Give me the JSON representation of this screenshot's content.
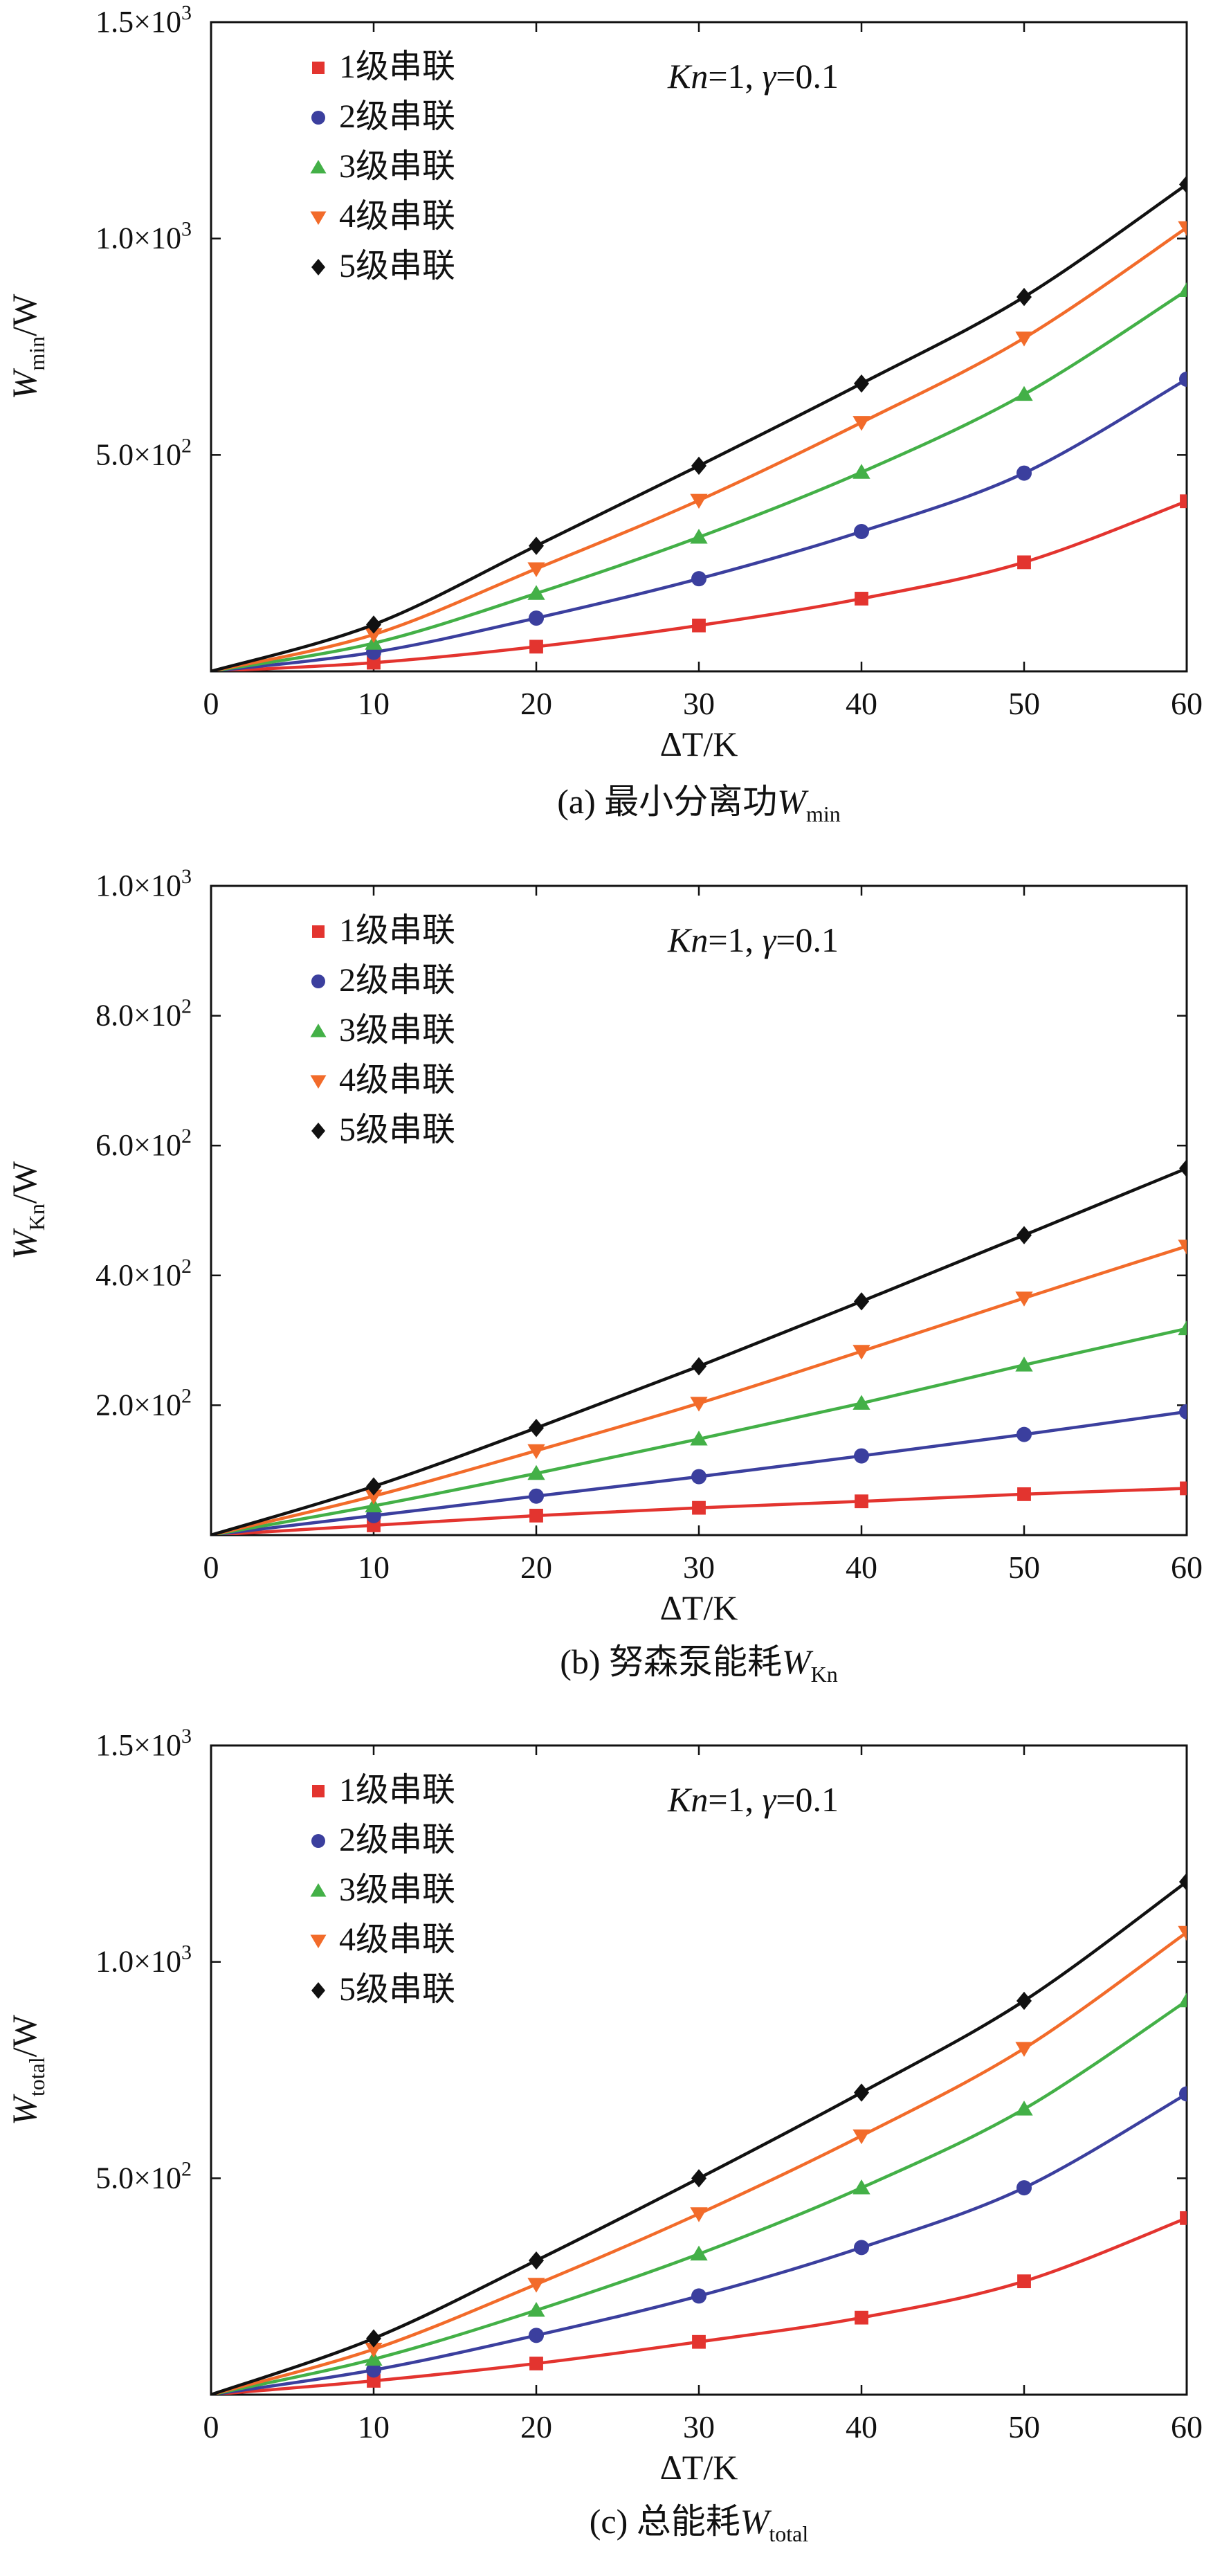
{
  "chart_data": [
    {
      "type": "line",
      "panel_caption": {
        "label": "(a) 最小分离功",
        "symbol": "W",
        "subscript": "min"
      },
      "ylabel": {
        "symbol": "W",
        "subscript": "min",
        "unit": "/W"
      },
      "xlabel": {
        "symbol": "ΔT",
        "unit": "/K"
      },
      "annotation": {
        "Kn": "Kn",
        "Kn_val": "=1, ",
        "gamma": "γ",
        "gamma_val": "=0.1"
      },
      "xlim": [
        0,
        60
      ],
      "ylim": [
        0,
        1500
      ],
      "xticks": [
        0,
        10,
        20,
        30,
        40,
        50,
        60
      ],
      "yticks": [
        {
          "value": 500,
          "mant": "5.0×10",
          "exp": "2"
        },
        {
          "value": 1000,
          "mant": "1.0×10",
          "exp": "3"
        },
        {
          "value": 1500,
          "mant": "1.5×10",
          "exp": "3"
        }
      ],
      "legend_position": "top-left",
      "x": [
        0,
        10,
        20,
        30,
        40,
        50,
        60
      ],
      "series": [
        {
          "name": "1级串联",
          "color": "#e3342f",
          "marker": "square",
          "values": [
            0,
            20,
            57,
            106,
            168,
            252,
            393
          ]
        },
        {
          "name": "2级串联",
          "color": "#3b3f9e",
          "marker": "circle",
          "values": [
            0,
            44,
            123,
            214,
            323,
            458,
            675
          ]
        },
        {
          "name": "3级串联",
          "color": "#43b047",
          "marker": "triangle-up",
          "values": [
            0,
            65,
            180,
            310,
            460,
            640,
            880
          ]
        },
        {
          "name": "4级串联",
          "color": "#f26b2a",
          "marker": "triangle-down",
          "values": [
            0,
            85,
            237,
            395,
            575,
            770,
            1025
          ]
        },
        {
          "name": "5级串联",
          "color": "#111111",
          "marker": "diamond",
          "values": [
            0,
            108,
            290,
            475,
            665,
            865,
            1125
          ]
        }
      ]
    },
    {
      "type": "line",
      "panel_caption": {
        "label": "(b) 努森泵能耗",
        "symbol": "W",
        "subscript": "Kn"
      },
      "ylabel": {
        "symbol": "W",
        "subscript": "Kn",
        "unit": "/W"
      },
      "xlabel": {
        "symbol": "ΔT",
        "unit": "/K"
      },
      "annotation": {
        "Kn": "Kn",
        "Kn_val": "=1, ",
        "gamma": "γ",
        "gamma_val": "=0.1"
      },
      "xlim": [
        0,
        60
      ],
      "ylim": [
        0,
        1000
      ],
      "xticks": [
        0,
        10,
        20,
        30,
        40,
        50,
        60
      ],
      "yticks": [
        {
          "value": 200,
          "mant": "2.0×10",
          "exp": "2"
        },
        {
          "value": 400,
          "mant": "4.0×10",
          "exp": "2"
        },
        {
          "value": 600,
          "mant": "6.0×10",
          "exp": "2"
        },
        {
          "value": 800,
          "mant": "8.0×10",
          "exp": "2"
        },
        {
          "value": 1000,
          "mant": "1.0×10",
          "exp": "3"
        }
      ],
      "legend_position": "top-left",
      "x": [
        0,
        10,
        20,
        30,
        40,
        50,
        60
      ],
      "series": [
        {
          "name": "1级串联",
          "color": "#e3342f",
          "marker": "square",
          "values": [
            0,
            15,
            30,
            42,
            52,
            63,
            72
          ]
        },
        {
          "name": "2级串联",
          "color": "#3b3f9e",
          "marker": "circle",
          "values": [
            0,
            30,
            60,
            90,
            122,
            155,
            190
          ]
        },
        {
          "name": "3级串联",
          "color": "#43b047",
          "marker": "triangle-up",
          "values": [
            0,
            45,
            95,
            148,
            203,
            262,
            318
          ]
        },
        {
          "name": "4级串联",
          "color": "#f26b2a",
          "marker": "triangle-down",
          "values": [
            0,
            60,
            130,
            203,
            283,
            365,
            445
          ]
        },
        {
          "name": "5级串联",
          "color": "#111111",
          "marker": "diamond",
          "values": [
            0,
            75,
            165,
            260,
            360,
            462,
            565
          ]
        }
      ]
    },
    {
      "type": "line",
      "panel_caption": {
        "label": "(c) 总能耗",
        "symbol": "W",
        "subscript": "total"
      },
      "ylabel": {
        "symbol": "W",
        "subscript": "total",
        "unit": "/W"
      },
      "xlabel": {
        "symbol": "ΔT",
        "unit": "/K"
      },
      "annotation": {
        "Kn": "Kn",
        "Kn_val": "=1, ",
        "gamma": "γ",
        "gamma_val": "=0.1"
      },
      "xlim": [
        0,
        60
      ],
      "ylim": [
        0,
        1500
      ],
      "xticks": [
        0,
        10,
        20,
        30,
        40,
        50,
        60
      ],
      "yticks": [
        {
          "value": 500,
          "mant": "5.0×10",
          "exp": "2"
        },
        {
          "value": 1000,
          "mant": "1.0×10",
          "exp": "3"
        },
        {
          "value": 1500,
          "mant": "1.5×10",
          "exp": "3"
        }
      ],
      "legend_position": "top-left",
      "x": [
        0,
        10,
        20,
        30,
        40,
        50,
        60
      ],
      "series": [
        {
          "name": "1级串联",
          "color": "#e3342f",
          "marker": "square",
          "values": [
            0,
            32,
            72,
            122,
            178,
            262,
            408
          ]
        },
        {
          "name": "2级串联",
          "color": "#3b3f9e",
          "marker": "circle",
          "values": [
            0,
            57,
            137,
            228,
            340,
            478,
            695
          ]
        },
        {
          "name": "3级串联",
          "color": "#43b047",
          "marker": "triangle-up",
          "values": [
            0,
            82,
            195,
            325,
            478,
            660,
            910
          ]
        },
        {
          "name": "4级串联",
          "color": "#f26b2a",
          "marker": "triangle-down",
          "values": [
            0,
            105,
            255,
            418,
            598,
            800,
            1068
          ]
        },
        {
          "name": "5级串联",
          "color": "#111111",
          "marker": "diamond",
          "values": [
            0,
            130,
            310,
            500,
            698,
            910,
            1185
          ]
        }
      ]
    }
  ]
}
